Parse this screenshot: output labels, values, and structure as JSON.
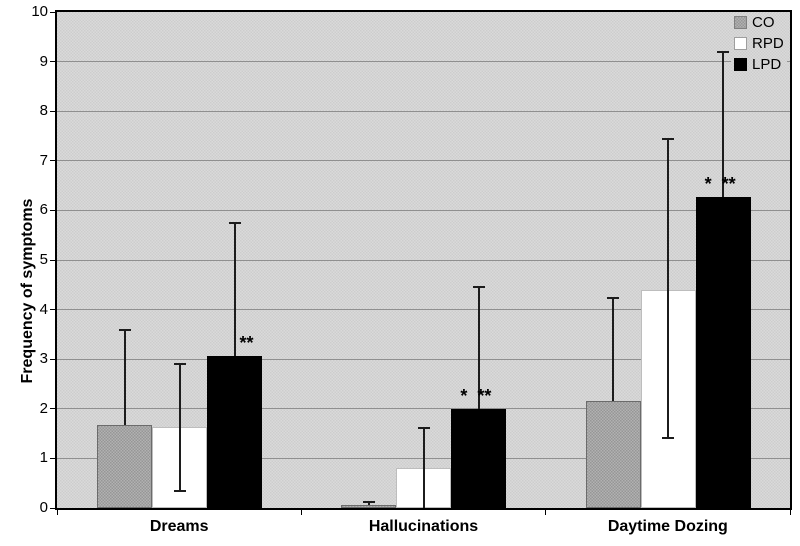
{
  "chart_data": {
    "type": "bar",
    "title": "",
    "ylabel": "Frequency of symptoms",
    "xlabel": "",
    "ylim": [
      0,
      10
    ],
    "yticks": [
      0,
      1,
      2,
      3,
      4,
      5,
      6,
      7,
      8,
      9,
      10
    ],
    "grid": true,
    "legend_position": "top-right-inside",
    "plot_background_light": "#dadada",
    "plot_background_dark": "#cdcdcd",
    "gridline_color": "#8f8f8f",
    "error_bar_color": "#1c1c1c",
    "categories": [
      "Dreams",
      "Hallucinations",
      "Daytime Dozing"
    ],
    "series": [
      {
        "name": "CO",
        "pattern": "dotted",
        "fill_light": "#b2b2b2",
        "fill_dark": "#969696",
        "border": "#6b6b6b",
        "values": [
          1.68,
          0.06,
          2.15
        ],
        "whiskers": [
          {
            "lo": 1.68,
            "hi": 3.6,
            "cap_lo": false,
            "cap_hi": true
          },
          {
            "lo": 0.06,
            "hi": 0.14,
            "cap_lo": false,
            "cap_hi": true
          },
          {
            "lo": 2.15,
            "hi": 4.25,
            "cap_lo": false,
            "cap_hi": true
          }
        ]
      },
      {
        "name": "RPD",
        "pattern": "solid",
        "fill": "#ffffff",
        "border": "#bdbdbd",
        "values": [
          1.63,
          0.8,
          4.4
        ],
        "whiskers": [
          {
            "lo": 0.33,
            "hi": 2.92,
            "cap_lo": true,
            "cap_hi": true
          },
          {
            "lo": 0.0,
            "hi": 1.64,
            "cap_lo": false,
            "cap_hi": true
          },
          {
            "lo": 1.4,
            "hi": 7.45,
            "cap_lo": true,
            "cap_hi": true
          }
        ]
      },
      {
        "name": "LPD",
        "pattern": "solid",
        "fill": "#000000",
        "border": "#000000",
        "values": [
          3.07,
          1.99,
          6.28
        ],
        "whiskers": [
          {
            "lo": 3.07,
            "hi": 5.77,
            "cap_lo": false,
            "cap_hi": true
          },
          {
            "lo": 1.99,
            "hi": 4.48,
            "cap_lo": false,
            "cap_hi": true
          },
          {
            "lo": 6.28,
            "hi": 9.22,
            "cap_lo": false,
            "cap_hi": true
          }
        ]
      }
    ],
    "annotations": [
      {
        "category_index": 0,
        "series": "LPD",
        "text": "**",
        "dx": 12
      },
      {
        "category_index": 1,
        "series": "LPD",
        "text": "*  **",
        "dx": -3
      },
      {
        "category_index": 2,
        "series": "LPD",
        "text": "*  **",
        "dx": -3
      }
    ]
  }
}
